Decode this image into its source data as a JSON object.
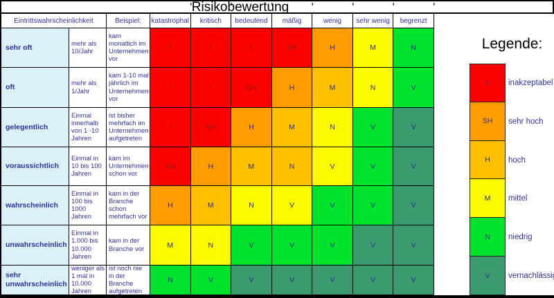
{
  "title": "Risikobewertung",
  "colors": {
    "red": "#fb0300",
    "orange": "#ff9c00",
    "amber": "#ffc000",
    "yellow": "#fdf900",
    "green": "#00e32c",
    "seagreen": "#3c9b6e"
  },
  "header": {
    "probability": "Eintrittswahrscheinlichkeit",
    "example": "Beispiel:",
    "severities": [
      "katastrophal",
      "kritisch",
      "bedeutend",
      "mäßig",
      "wenig",
      "sehr wenig",
      "begrenzt"
    ]
  },
  "rows": [
    {
      "label": "sehr oft",
      "frequency": "mehr als 10/Jahr",
      "example": "kam monatlich im Unternehmen vor",
      "cells": [
        {
          "letter": "I",
          "color": "red"
        },
        {
          "letter": "I",
          "color": "red"
        },
        {
          "letter": "I",
          "color": "red"
        },
        {
          "letter": "SH",
          "color": "red"
        },
        {
          "letter": "H",
          "color": "orange"
        },
        {
          "letter": "M",
          "color": "yellow"
        },
        {
          "letter": "N",
          "color": "green"
        }
      ]
    },
    {
      "label": "oft",
      "frequency": "mehr als 1/Jahr",
      "example": "kam 1-10 mal jährlich im Unternehmen vor",
      "cells": [
        {
          "letter": "I",
          "color": "red"
        },
        {
          "letter": "I",
          "color": "red"
        },
        {
          "letter": "SH",
          "color": "red"
        },
        {
          "letter": "H",
          "color": "orange"
        },
        {
          "letter": "M",
          "color": "amber"
        },
        {
          "letter": "N",
          "color": "yellow"
        },
        {
          "letter": "V",
          "color": "green"
        }
      ]
    },
    {
      "label": "gelegentlich",
      "frequency": "Einmal innerhalb von 1 -10 Jahren",
      "example": "ist bisher mehrfach im Unternehmen aufgetreten",
      "cells": [
        {
          "letter": "I",
          "color": "red"
        },
        {
          "letter": "SH",
          "color": "red"
        },
        {
          "letter": "H",
          "color": "orange"
        },
        {
          "letter": "M",
          "color": "amber"
        },
        {
          "letter": "N",
          "color": "yellow"
        },
        {
          "letter": "V",
          "color": "green"
        },
        {
          "letter": "V",
          "color": "seagreen"
        }
      ]
    },
    {
      "label": "voraussichtlich",
      "frequency": "Einmal in 10 bis 100 Jahren",
      "example": "kam im Unternehmen schon vor",
      "cells": [
        {
          "letter": "SH",
          "color": "red"
        },
        {
          "letter": "H",
          "color": "orange"
        },
        {
          "letter": "M",
          "color": "amber"
        },
        {
          "letter": "N",
          "color": "amber"
        },
        {
          "letter": "V",
          "color": "yellow"
        },
        {
          "letter": "V",
          "color": "green"
        },
        {
          "letter": "V",
          "color": "seagreen"
        }
      ]
    },
    {
      "label": "wahrscheinlich",
      "frequency": "Einmal in 100 bis 1000 Jahren",
      "example": "kam in der Branche schon mehrfach vor",
      "cells": [
        {
          "letter": "H",
          "color": "orange"
        },
        {
          "letter": "M",
          "color": "amber"
        },
        {
          "letter": "N",
          "color": "yellow"
        },
        {
          "letter": "V",
          "color": "yellow"
        },
        {
          "letter": "V",
          "color": "green"
        },
        {
          "letter": "V",
          "color": "green"
        },
        {
          "letter": "V",
          "color": "seagreen"
        }
      ]
    },
    {
      "label": "unwahrscheinlich",
      "frequency": "Einmal in 1.000 bis 10.000 Jahren",
      "example": "kam in der Branche vor",
      "cells": [
        {
          "letter": "M",
          "color": "yellow"
        },
        {
          "letter": "N",
          "color": "yellow"
        },
        {
          "letter": "V",
          "color": "green"
        },
        {
          "letter": "V",
          "color": "green"
        },
        {
          "letter": "V",
          "color": "green"
        },
        {
          "letter": "V",
          "color": "seagreen"
        },
        {
          "letter": "V",
          "color": "seagreen"
        }
      ]
    },
    {
      "label": "sehr unwahrscheinlich",
      "frequency": "weniger als 1 mal in 10.000 Jahren",
      "example": "ist noch nie in der Branche aufgetreten",
      "cells": [
        {
          "letter": "N",
          "color": "green"
        },
        {
          "letter": "V",
          "color": "green"
        },
        {
          "letter": "V",
          "color": "seagreen"
        },
        {
          "letter": "V",
          "color": "seagreen"
        },
        {
          "letter": "V",
          "color": "seagreen"
        },
        {
          "letter": "V",
          "color": "seagreen"
        },
        {
          "letter": "V",
          "color": "seagreen"
        }
      ]
    }
  ],
  "legend": {
    "title": "Legende:",
    "items": [
      {
        "letter": "I",
        "color": "red",
        "label": "inakzeptabel"
      },
      {
        "letter": "SH",
        "color": "orange",
        "label": "sehr hoch"
      },
      {
        "letter": "H",
        "color": "amber",
        "label": "hoch"
      },
      {
        "letter": "M",
        "color": "yellow",
        "label": "mittel"
      },
      {
        "letter": "N",
        "color": "green",
        "label": "niedrig"
      },
      {
        "letter": "V",
        "color": "seagreen",
        "label": "vernachlässigbar"
      }
    ]
  }
}
